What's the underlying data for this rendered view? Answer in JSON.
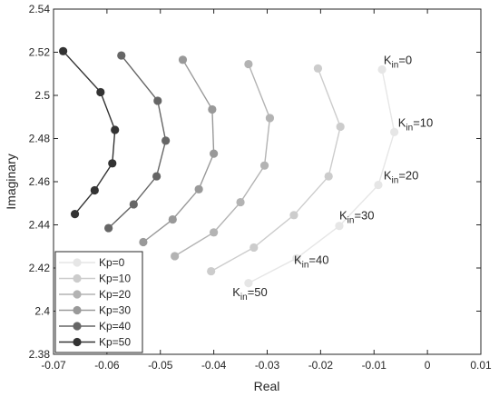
{
  "chart_data": {
    "type": "line",
    "title": "",
    "xlabel": "Real",
    "ylabel": "Imaginary",
    "xlim": [
      -0.07,
      0.01
    ],
    "ylim": [
      2.38,
      2.54
    ],
    "x_ticks": [
      -0.07,
      -0.06,
      -0.05,
      -0.04,
      -0.03,
      -0.02,
      -0.01,
      0,
      0.01
    ],
    "x_tick_labels": [
      "-0.07",
      "-0.06",
      "-0.05",
      "-0.04",
      "-0.03",
      "-0.02",
      "-0.01",
      "0",
      "0.01"
    ],
    "y_ticks": [
      2.38,
      2.4,
      2.42,
      2.44,
      2.46,
      2.48,
      2.5,
      2.52,
      2.54
    ],
    "y_tick_labels": [
      "2.38",
      "2.4",
      "2.42",
      "2.44",
      "2.46",
      "2.48",
      "2.5",
      "2.52",
      "2.54"
    ],
    "grid": false,
    "legend_position": "bottom-left",
    "series": [
      {
        "name": "Kp=0",
        "color": "#e6e6e6",
        "points": [
          [
            -0.0085,
            2.512
          ],
          [
            -0.0062,
            2.483
          ],
          [
            -0.0092,
            2.4585
          ],
          [
            -0.0165,
            2.4395
          ],
          [
            -0.0245,
            2.4245
          ],
          [
            -0.0335,
            2.413
          ]
        ]
      },
      {
        "name": "Kp=10",
        "color": "#cccccc",
        "points": [
          [
            -0.0205,
            2.5125
          ],
          [
            -0.0163,
            2.4855
          ],
          [
            -0.0185,
            2.4625
          ],
          [
            -0.025,
            2.4445
          ],
          [
            -0.0325,
            2.4295
          ],
          [
            -0.0405,
            2.4185
          ]
        ]
      },
      {
        "name": "Kp=20",
        "color": "#b3b3b3",
        "points": [
          [
            -0.0335,
            2.5145
          ],
          [
            -0.0295,
            2.4895
          ],
          [
            -0.0305,
            2.4675
          ],
          [
            -0.035,
            2.4505
          ],
          [
            -0.04,
            2.4365
          ],
          [
            -0.0473,
            2.4255
          ]
        ]
      },
      {
        "name": "Kp=30",
        "color": "#999999",
        "points": [
          [
            -0.0458,
            2.5165
          ],
          [
            -0.0403,
            2.4935
          ],
          [
            -0.04,
            2.473
          ],
          [
            -0.0428,
            2.4565
          ],
          [
            -0.0477,
            2.4425
          ],
          [
            -0.0532,
            2.432
          ]
        ]
      },
      {
        "name": "Kp=40",
        "color": "#666666",
        "points": [
          [
            -0.0573,
            2.5185
          ],
          [
            -0.0505,
            2.4975
          ],
          [
            -0.049,
            2.479
          ],
          [
            -0.0507,
            2.4625
          ],
          [
            -0.055,
            2.4495
          ],
          [
            -0.0597,
            2.4385
          ]
        ]
      },
      {
        "name": "Kp=50",
        "color": "#333333",
        "points": [
          [
            -0.0682,
            2.5205
          ],
          [
            -0.0612,
            2.5015
          ],
          [
            -0.0585,
            2.484
          ],
          [
            -0.059,
            2.4685
          ],
          [
            -0.0623,
            2.456
          ],
          [
            -0.066,
            2.445
          ]
        ]
      }
    ],
    "annotations": [
      {
        "base": "K",
        "sub": "in",
        "rest": "=0",
        "x": -0.0082,
        "y": 2.5145
      },
      {
        "base": "K",
        "sub": "in",
        "rest": "=10",
        "x": -0.0055,
        "y": 2.4855
      },
      {
        "base": "K",
        "sub": "in",
        "rest": "=20",
        "x": -0.0082,
        "y": 2.461
      },
      {
        "base": "K",
        "sub": "in",
        "rest": "=30",
        "x": -0.0165,
        "y": 2.4425
      },
      {
        "base": "K",
        "sub": "in",
        "rest": "=40",
        "x": -0.025,
        "y": 2.422
      },
      {
        "base": "K",
        "sub": "in",
        "rest": "=50",
        "x": -0.0365,
        "y": 2.407
      }
    ]
  }
}
